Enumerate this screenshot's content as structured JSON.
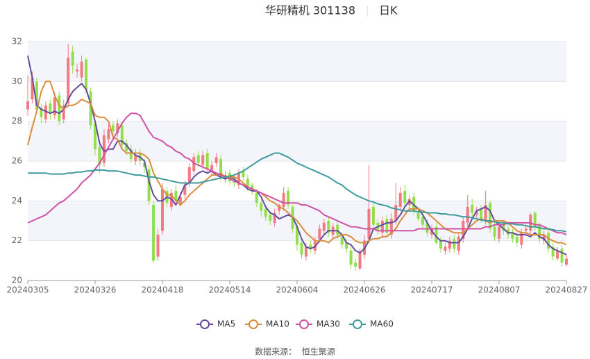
{
  "chart_data": {
    "type": "candlestick",
    "title": "华研精机 301138",
    "subtitle": "日K",
    "source": "数据来源：  恒生聚源",
    "categories": [
      "20240305",
      null,
      null,
      null,
      null,
      null,
      null,
      null,
      null,
      null,
      null,
      null,
      null,
      null,
      null,
      "20240326",
      null,
      null,
      null,
      null,
      null,
      null,
      null,
      null,
      null,
      null,
      null,
      null,
      null,
      null,
      "20240418",
      null,
      null,
      null,
      null,
      null,
      null,
      null,
      null,
      null,
      null,
      null,
      null,
      null,
      null,
      "20240514",
      null,
      null,
      null,
      null,
      null,
      null,
      null,
      null,
      null,
      null,
      null,
      null,
      null,
      null,
      "20240604",
      null,
      null,
      null,
      null,
      null,
      null,
      null,
      null,
      null,
      null,
      null,
      null,
      null,
      null,
      "20240626",
      null,
      null,
      null,
      null,
      null,
      null,
      null,
      null,
      null,
      null,
      null,
      null,
      null,
      null,
      "20240717",
      null,
      null,
      null,
      null,
      null,
      null,
      null,
      null,
      null,
      null,
      null,
      null,
      null,
      null,
      "20240807",
      null,
      null,
      null,
      null,
      null,
      null,
      null,
      null,
      null,
      null,
      null,
      null,
      null,
      null,
      "20240827"
    ],
    "open": [
      28.6,
      29.1,
      30.0,
      28.7,
      28.1,
      28.9,
      28.3,
      29.3,
      28.1,
      28.9,
      31.5,
      30.5,
      30.2,
      31.1,
      29.5,
      27.9,
      26.7,
      25.9,
      27.1,
      27.8,
      27.4,
      27.8,
      26.9,
      26.6,
      26.0,
      26.4,
      25.9,
      25.6,
      23.8,
      21.2,
      22.5,
      24.5,
      23.7,
      24.5,
      23.9,
      24.3,
      24.9,
      25.5,
      26.3,
      25.8,
      26.4,
      25.5,
      25.9,
      26.1,
      25.1,
      25.4,
      25.1,
      24.8,
      25.5,
      25.1,
      24.8,
      24.4,
      23.9,
      23.6,
      23.3,
      22.9,
      23.5,
      23.7,
      24.5,
      23.7,
      22.7,
      21.9,
      21.2,
      21.8,
      21.5,
      22.1,
      22.5,
      23.0,
      22.3,
      22.8,
      22.2,
      21.9,
      21.5,
      20.9,
      20.6,
      21.3,
      22.1,
      23.7,
      22.9,
      22.4,
      23.1,
      22.3,
      23.0,
      23.7,
      24.5,
      23.8,
      24.2,
      23.4,
      23.2,
      22.9,
      22.3,
      22.7,
      22.0,
      21.5,
      21.6,
      22.1,
      21.5,
      22.1,
      22.9,
      23.8,
      23.3,
      23.6,
      23.0,
      23.9,
      22.7,
      22.1,
      22.8,
      22.6,
      22.4,
      22.2,
      21.8,
      22.5,
      22.5,
      23.4,
      22.8,
      22.0,
      22.4,
      21.7,
      21.1,
      21.6,
      20.8
    ],
    "close": [
      29.0,
      30.2,
      28.6,
      28.2,
      28.8,
      28.4,
      29.2,
      28.0,
      28.8,
      31.2,
      30.8,
      30.6,
      31.0,
      29.6,
      27.8,
      26.6,
      25.8,
      27.3,
      27.6,
      27.5,
      27.9,
      26.8,
      26.5,
      26.1,
      26.3,
      26.0,
      25.7,
      24.0,
      21.0,
      22.3,
      24.6,
      23.9,
      24.4,
      24.0,
      24.2,
      24.8,
      25.7,
      26.2,
      25.9,
      26.3,
      25.6,
      25.8,
      26.2,
      25.2,
      25.3,
      25.0,
      24.9,
      25.4,
      25.2,
      24.7,
      24.5,
      23.9,
      23.5,
      23.2,
      23.0,
      23.4,
      23.8,
      24.4,
      23.8,
      22.6,
      21.8,
      21.3,
      21.7,
      21.6,
      22.0,
      22.6,
      22.9,
      22.4,
      22.7,
      22.3,
      21.8,
      21.6,
      20.8,
      20.7,
      21.4,
      22.0,
      23.6,
      22.8,
      22.5,
      23.0,
      22.4,
      23.1,
      23.8,
      24.4,
      23.9,
      24.1,
      23.5,
      23.1,
      22.8,
      22.4,
      22.6,
      21.9,
      21.6,
      21.7,
      22.0,
      21.6,
      22.2,
      23.0,
      23.7,
      23.4,
      23.5,
      23.1,
      23.8,
      22.6,
      22.2,
      22.7,
      22.5,
      22.3,
      22.1,
      21.9,
      22.4,
      22.6,
      23.3,
      22.7,
      22.1,
      22.3,
      21.6,
      21.2,
      21.5,
      20.9,
      21.1
    ],
    "high": [
      30.3,
      30.5,
      30.2,
      28.9,
      29.0,
      29.1,
      29.5,
      29.5,
      29.1,
      31.9,
      31.8,
      30.9,
      31.3,
      31.2,
      29.7,
      28.1,
      26.9,
      27.6,
      27.9,
      28.0,
      28.1,
      28.0,
      27.1,
      26.8,
      26.6,
      26.6,
      26.1,
      25.8,
      24.0,
      22.6,
      24.9,
      24.7,
      24.6,
      24.8,
      24.4,
      25.0,
      25.9,
      26.4,
      26.5,
      26.5,
      26.6,
      26.0,
      26.4,
      26.3,
      25.5,
      25.6,
      25.3,
      25.6,
      25.7,
      25.3,
      24.9,
      24.6,
      24.1,
      23.8,
      23.5,
      23.6,
      23.9,
      24.7,
      24.7,
      23.8,
      22.9,
      22.1,
      21.9,
      22.0,
      22.2,
      22.8,
      23.1,
      23.2,
      22.9,
      23.0,
      22.4,
      22.1,
      21.7,
      21.1,
      21.6,
      22.3,
      25.8,
      23.9,
      23.1,
      23.2,
      23.3,
      23.4,
      24.9,
      24.7,
      24.8,
      24.3,
      24.4,
      23.7,
      23.4,
      23.1,
      22.8,
      22.9,
      22.2,
      21.9,
      22.2,
      22.3,
      22.4,
      23.2,
      24.3,
      24.1,
      23.7,
      23.8,
      24.5,
      24.0,
      22.9,
      22.9,
      23.0,
      22.8,
      22.6,
      22.4,
      22.6,
      22.8,
      23.4,
      23.5,
      22.9,
      22.5,
      22.6,
      21.9,
      21.7,
      21.8,
      21.3
    ],
    "low": [
      28.3,
      28.9,
      28.4,
      27.9,
      27.9,
      28.1,
      28.1,
      27.8,
      27.9,
      28.7,
      30.4,
      30.2,
      30.0,
      29.4,
      27.6,
      26.3,
      25.4,
      25.7,
      26.9,
      27.2,
      27.2,
      26.6,
      26.3,
      25.9,
      25.8,
      25.8,
      25.4,
      23.8,
      20.9,
      21.0,
      22.3,
      23.7,
      23.5,
      23.8,
      23.7,
      24.1,
      24.7,
      25.3,
      25.7,
      25.6,
      25.4,
      25.3,
      25.7,
      25.0,
      24.9,
      24.8,
      24.7,
      24.6,
      25.0,
      24.5,
      24.3,
      23.7,
      23.2,
      23.0,
      22.8,
      22.7,
      23.3,
      23.5,
      23.6,
      22.4,
      21.5,
      21.1,
      21.0,
      21.4,
      21.3,
      21.9,
      22.3,
      22.2,
      22.1,
      22.1,
      21.6,
      21.4,
      20.6,
      20.5,
      20.5,
      21.1,
      21.9,
      22.6,
      22.3,
      22.2,
      22.2,
      22.1,
      22.8,
      23.5,
      23.7,
      23.6,
      23.3,
      23.0,
      22.6,
      22.2,
      22.1,
      21.8,
      21.4,
      21.3,
      21.4,
      21.4,
      21.3,
      21.9,
      22.7,
      23.2,
      23.1,
      22.9,
      22.8,
      22.4,
      22.0,
      21.9,
      22.3,
      22.1,
      21.9,
      21.7,
      21.6,
      22.3,
      22.3,
      22.5,
      21.9,
      21.8,
      21.4,
      21.0,
      21.0,
      20.7,
      20.7
    ],
    "up_color": "#f27a82",
    "down_color": "#91df4b",
    "series": [
      {
        "name": "MA5",
        "color": "#654b9e",
        "values": [
          31.3,
          30.2,
          28.8,
          28.6,
          28.5,
          28.4,
          28.5,
          28.4,
          28.6,
          29.1,
          29.5,
          29.7,
          29.9,
          29.6,
          28.9,
          28.0,
          26.9,
          26.5,
          26.6,
          26.6,
          27.0,
          27.0,
          26.8,
          26.5,
          26.3,
          26.2,
          26.0,
          25.0,
          24.3,
          24.0,
          24.0,
          24.2,
          24.1,
          23.8,
          24.3,
          24.8,
          24.9,
          25.2,
          25.4,
          25.5,
          25.4,
          25.5,
          25.3,
          25.2,
          25.1,
          25.2,
          25.1,
          24.9,
          24.8,
          24.6,
          24.5,
          24.5,
          24.2,
          23.7,
          23.4,
          23.3,
          23.1,
          23.2,
          23.3,
          23.2,
          22.7,
          22.1,
          21.7,
          21.6,
          21.7,
          22.0,
          22.3,
          22.5,
          22.5,
          22.5,
          22.3,
          21.9,
          21.8,
          21.5,
          21.4,
          21.6,
          22.0,
          22.6,
          22.7,
          22.8,
          22.9,
          22.9,
          23.0,
          23.3,
          23.7,
          24.0,
          23.8,
          23.6,
          23.3,
          22.9,
          22.5,
          22.2,
          22.0,
          22.0,
          21.9,
          21.9,
          21.9,
          22.2,
          22.6,
          23.1,
          23.5,
          23.6,
          23.7,
          23.5,
          23.0,
          22.8,
          22.6,
          22.4,
          22.4,
          22.3,
          22.3,
          22.3,
          22.2,
          22.4,
          22.2,
          22.1,
          21.8,
          21.6,
          21.5,
          21.4,
          21.3
        ]
      },
      {
        "name": "MA10",
        "color": "#d98c3e",
        "values": [
          26.8,
          27.7,
          28.5,
          29.5,
          30.0,
          30.0,
          29.3,
          28.8,
          28.6,
          28.8,
          28.8,
          28.9,
          29.1,
          29.0,
          28.9,
          28.3,
          28.2,
          28.2,
          28.0,
          27.2,
          27.1,
          26.6,
          26.4,
          26.4,
          26.4,
          26.4,
          26.3,
          26.1,
          25.4,
          25.0,
          24.6,
          24.3,
          24.3,
          24.0,
          23.8,
          24.0,
          24.3,
          24.5,
          24.7,
          24.9,
          25.1,
          25.3,
          25.3,
          25.4,
          25.2,
          25.2,
          25.2,
          25.1,
          24.9,
          24.7,
          24.6,
          24.5,
          24.4,
          24.2,
          24.0,
          23.9,
          23.7,
          23.6,
          23.4,
          23.2,
          23.0,
          22.7,
          22.4,
          22.2,
          22.0,
          22.0,
          22.0,
          21.9,
          22.1,
          22.2,
          22.3,
          22.3,
          22.2,
          22.0,
          21.9,
          21.9,
          22.0,
          22.1,
          22.1,
          22.2,
          22.2,
          22.4,
          22.6,
          23.0,
          23.3,
          23.6,
          23.6,
          23.6,
          23.5,
          23.4,
          23.2,
          23.0,
          22.8,
          22.6,
          22.5,
          22.4,
          22.4,
          22.4,
          22.6,
          22.8,
          23.0,
          23.1,
          23.0,
          22.9,
          23.0,
          23.0,
          23.0,
          22.9,
          22.7,
          22.5,
          22.4,
          22.4,
          22.3,
          22.3,
          22.3,
          22.3,
          22.1,
          22.0,
          21.9,
          21.9,
          21.8
        ]
      },
      {
        "name": "MA30",
        "color": "#cf52a4",
        "values": [
          22.9,
          23.0,
          23.1,
          23.2,
          23.3,
          23.5,
          23.7,
          23.9,
          24.0,
          24.2,
          24.4,
          24.6,
          24.9,
          25.1,
          25.3,
          25.6,
          25.9,
          26.3,
          26.7,
          27.1,
          27.5,
          27.9,
          28.2,
          28.4,
          28.4,
          28.3,
          27.9,
          27.5,
          27.2,
          27.1,
          27.0,
          26.8,
          26.7,
          26.5,
          26.4,
          26.2,
          26.1,
          25.9,
          25.8,
          25.7,
          25.6,
          25.5,
          25.4,
          25.3,
          25.2,
          25.1,
          25.0,
          24.9,
          24.8,
          24.7,
          24.6,
          24.5,
          24.4,
          24.3,
          24.2,
          24.1,
          24.0,
          23.9,
          23.9,
          23.9,
          23.9,
          23.8,
          23.8,
          23.7,
          23.6,
          23.5,
          23.3,
          23.2,
          23.1,
          23.0,
          22.9,
          22.8,
          22.7,
          22.7,
          22.65,
          22.6,
          22.6,
          22.6,
          22.5,
          22.5,
          22.5,
          22.5,
          22.5,
          22.5,
          22.5,
          22.5,
          22.5,
          22.6,
          22.6,
          22.6,
          22.6,
          22.6,
          22.6,
          22.6,
          22.6,
          22.6,
          22.6,
          22.6,
          22.6,
          22.6,
          22.6,
          22.6,
          22.7,
          22.7,
          22.8,
          22.8,
          22.8,
          22.9,
          22.9,
          22.9,
          22.9,
          22.9,
          22.9,
          22.8,
          22.8,
          22.7,
          22.6,
          22.5,
          22.4,
          22.4,
          22.3
        ]
      },
      {
        "name": "MA60",
        "color": "#3f9a9c",
        "values": [
          25.4,
          25.4,
          25.4,
          25.4,
          25.4,
          25.35,
          25.35,
          25.35,
          25.35,
          25.4,
          25.4,
          25.45,
          25.45,
          25.5,
          25.5,
          25.55,
          25.55,
          25.55,
          25.5,
          25.5,
          25.5,
          25.45,
          25.4,
          25.35,
          25.3,
          25.3,
          25.25,
          25.2,
          25.2,
          25.15,
          25.1,
          25.05,
          25.0,
          24.95,
          24.9,
          24.9,
          24.9,
          24.9,
          24.9,
          24.95,
          25.0,
          25.05,
          25.1,
          25.15,
          25.2,
          25.25,
          25.3,
          25.4,
          25.5,
          25.65,
          25.8,
          25.95,
          26.1,
          26.2,
          26.3,
          26.4,
          26.4,
          26.3,
          26.2,
          26.05,
          25.9,
          25.8,
          25.7,
          25.6,
          25.5,
          25.4,
          25.3,
          25.2,
          25.05,
          24.9,
          24.8,
          24.6,
          24.45,
          24.3,
          24.2,
          24.1,
          24.0,
          23.95,
          23.85,
          23.8,
          23.75,
          23.65,
          23.6,
          23.55,
          23.5,
          23.5,
          23.5,
          23.45,
          23.45,
          23.4,
          23.4,
          23.4,
          23.35,
          23.35,
          23.3,
          23.3,
          23.25,
          23.2,
          23.2,
          23.15,
          23.1,
          23.05,
          23.0,
          23.0,
          22.95,
          22.9,
          22.9,
          22.85,
          22.85,
          22.8,
          22.8,
          22.75,
          22.7,
          22.7,
          22.65,
          22.6,
          22.6,
          22.55,
          22.5,
          22.5,
          22.45
        ]
      }
    ],
    "ylim": [
      20,
      32
    ],
    "yticks": [
      20,
      22,
      24,
      26,
      28,
      30,
      32
    ],
    "grid": true,
    "split_area": true,
    "legend": "bottom"
  }
}
